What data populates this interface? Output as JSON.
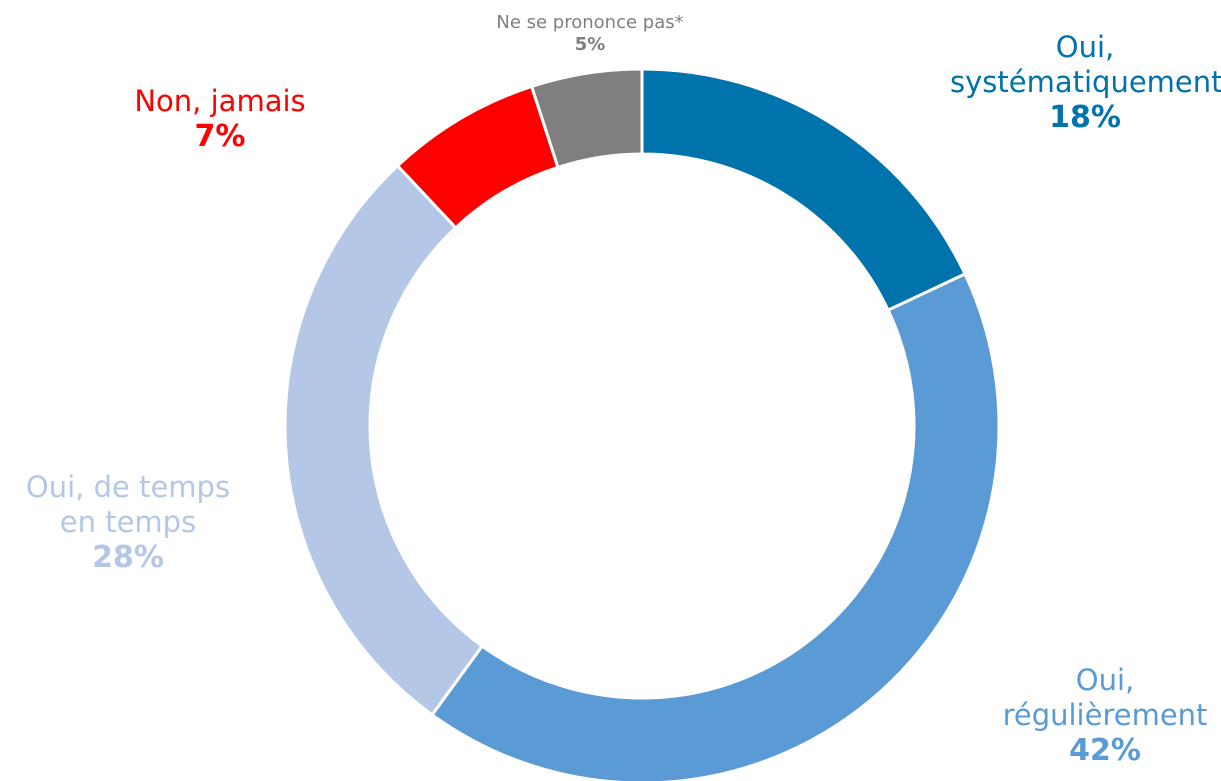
{
  "chart_data": {
    "type": "pie",
    "variant": "donut",
    "segments": [
      {
        "label": "Oui, systématiquement",
        "label_lines": [
          "Oui,",
          "systématiquement"
        ],
        "value": 18,
        "display": "18%",
        "color": "#0072AC"
      },
      {
        "label": "Oui, régulièrement",
        "label_lines": [
          "Oui,",
          "régulièrement"
        ],
        "value": 42,
        "display": "42%",
        "color": "#5B9BD5"
      },
      {
        "label": "Oui, de temps en temps",
        "label_lines": [
          "Oui, de temps",
          "en temps"
        ],
        "value": 28,
        "display": "28%",
        "color": "#B4C7E7"
      },
      {
        "label": "Non, jamais",
        "label_lines": [
          "Non, jamais"
        ],
        "value": 7,
        "display": "7%",
        "color": "#FF0000"
      },
      {
        "label": "Ne se prononce pas*",
        "label_lines": [
          "Ne se prononce pas*"
        ],
        "value": 5,
        "display": "5%",
        "color": "#7F7F7F"
      }
    ],
    "start": "top",
    "direction": "clockwise",
    "legend": "none"
  }
}
